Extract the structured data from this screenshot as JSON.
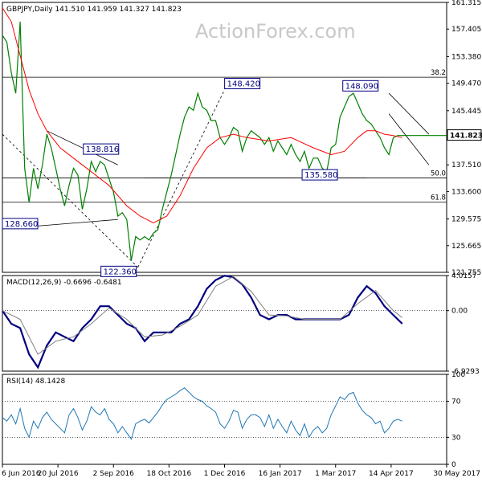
{
  "chart_data": [
    {
      "type": "line",
      "subtype": "candlestick-price",
      "header": "GBPJPY,Daily  141.510 141.959 141.327 141.823",
      "watermark": "ActionForex.com",
      "ylim": [
        121.755,
        161.315
      ],
      "yticks": [
        "161.315",
        "157.405",
        "153.380",
        "149.470",
        "145.445",
        "141.823",
        "137.510",
        "133.600",
        "129.575",
        "125.665",
        "121.755"
      ],
      "last_price": "141.823",
      "fib_levels": [
        {
          "label": "38.2",
          "y": 150.35
        },
        {
          "label": "50.0",
          "y": 135.58
        },
        {
          "label": "61.8",
          "y": 132.03
        }
      ],
      "annotations": [
        {
          "label": "148.420",
          "x": 0.54,
          "y": 148.42
        },
        {
          "label": "148.090",
          "x": 0.806,
          "y": 148.09
        },
        {
          "label": "138.816",
          "x": 0.222,
          "y": 138.816
        },
        {
          "label": "135.580",
          "x": 0.747,
          "y": 135.58
        },
        {
          "label": "128.660",
          "x": 0.062,
          "y": 128.66
        },
        {
          "label": "122.360",
          "x": 0.305,
          "y": 122.36
        }
      ],
      "series": [
        {
          "name": "GBPJPY",
          "color": "#008000",
          "x": [
            0,
            0.01,
            0.02,
            0.03,
            0.04,
            0.05,
            0.06,
            0.07,
            0.08,
            0.09,
            0.1,
            0.11,
            0.12,
            0.13,
            0.14,
            0.15,
            0.16,
            0.17,
            0.18,
            0.19,
            0.2,
            0.21,
            0.22,
            0.23,
            0.24,
            0.25,
            0.26,
            0.27,
            0.28,
            0.29,
            0.3,
            0.31,
            0.32,
            0.33,
            0.34,
            0.35,
            0.36,
            0.37,
            0.38,
            0.39,
            0.4,
            0.41,
            0.42,
            0.43,
            0.44,
            0.45,
            0.46,
            0.47,
            0.48,
            0.49,
            0.5,
            0.51,
            0.52,
            0.53,
            0.54,
            0.55,
            0.56,
            0.57,
            0.58,
            0.59,
            0.6,
            0.61,
            0.62,
            0.63,
            0.64,
            0.65,
            0.66,
            0.67,
            0.68,
            0.69,
            0.7,
            0.71,
            0.72,
            0.73,
            0.74,
            0.75,
            0.76,
            0.77,
            0.78,
            0.79,
            0.8,
            0.81,
            0.82,
            0.83,
            0.84,
            0.85,
            0.86,
            0.87,
            0.88,
            0.89,
            0.9,
            0.91,
            0.92,
            0.93,
            0.94,
            0.95,
            0.96,
            0.97,
            0.98,
            0.99,
            1.0
          ],
          "values": [
            156.5,
            155.5,
            151,
            148,
            158.5,
            137,
            132,
            137,
            134,
            137.5,
            142,
            140,
            137,
            134,
            131.5,
            134.5,
            137,
            136,
            131,
            134,
            138,
            136.5,
            138,
            137.5,
            135.5,
            133.5,
            130,
            130.5,
            129.5,
            123.5,
            127,
            126.5,
            127,
            126.5,
            127.5,
            128,
            131,
            133.5,
            136,
            139,
            142,
            144.5,
            146,
            145.5,
            148,
            146,
            145.5,
            144,
            144,
            141.5,
            140.5,
            141.5,
            143,
            142.5,
            139.5,
            141.5,
            142.5,
            142,
            141.5,
            140.5,
            141.5,
            139.5,
            141,
            140,
            139,
            140.5,
            139,
            138,
            139.5,
            137,
            138.5,
            138.5,
            137,
            136.5,
            140,
            140.5,
            144.5,
            146,
            147.5,
            148,
            146.5,
            145,
            144,
            143.5,
            142.5,
            141.5,
            140,
            139,
            141.5,
            141.8,
            141.8,
            141.8,
            141.8,
            141.8,
            141.8,
            141.8,
            141.8,
            141.8,
            141.8,
            141.8,
            141.8
          ]
        },
        {
          "name": "SMA",
          "color": "#ff0000",
          "x": [
            0,
            0.02,
            0.04,
            0.06,
            0.08,
            0.1,
            0.13,
            0.16,
            0.2,
            0.24,
            0.28,
            0.31,
            0.34,
            0.37,
            0.4,
            0.43,
            0.46,
            0.49,
            0.52,
            0.55,
            0.6,
            0.65,
            0.7,
            0.74,
            0.77,
            0.8,
            0.82,
            0.84,
            0.86,
            0.88,
            0.9
          ],
          "values": [
            160.5,
            158.5,
            153.5,
            148.5,
            145,
            142.5,
            140,
            138.5,
            136.5,
            134.5,
            131.5,
            130,
            129,
            130,
            133,
            137,
            140,
            141.5,
            142,
            141.5,
            141,
            141.5,
            140,
            139,
            139.5,
            141.5,
            142.5,
            142.5,
            142,
            141.8,
            141.5
          ]
        }
      ]
    },
    {
      "type": "line",
      "header": "MACD(12,26,9) -0.6696 -0.6481",
      "ylim": [
        -6.9293,
        4.0157
      ],
      "yticks": [
        "4.0157",
        "0.00",
        "-6.9293"
      ],
      "series": [
        {
          "name": "MACD",
          "color": "#000080",
          "x": [
            0,
            0.02,
            0.04,
            0.06,
            0.08,
            0.1,
            0.12,
            0.14,
            0.16,
            0.18,
            0.2,
            0.22,
            0.24,
            0.26,
            0.28,
            0.3,
            0.32,
            0.34,
            0.36,
            0.38,
            0.4,
            0.42,
            0.44,
            0.46,
            0.48,
            0.5,
            0.52,
            0.54,
            0.56,
            0.58,
            0.6,
            0.62,
            0.64,
            0.66,
            0.68,
            0.7,
            0.72,
            0.74,
            0.76,
            0.78,
            0.8,
            0.82,
            0.84,
            0.86,
            0.88,
            0.9
          ],
          "values": [
            0,
            -1.5,
            -2,
            -5,
            -6.5,
            -4,
            -2.5,
            -3,
            -3.5,
            -2,
            -1,
            0.5,
            0.5,
            -0.5,
            -1.5,
            -2,
            -3.5,
            -2.5,
            -2.5,
            -2.5,
            -1.5,
            -1,
            0.5,
            2.5,
            3.5,
            4,
            3.8,
            3,
            1.5,
            -0.5,
            -1,
            -0.5,
            -0.5,
            -1,
            -1,
            -1,
            -1,
            -1,
            -1,
            -0.5,
            1.5,
            2.8,
            2,
            0.5,
            -0.5,
            -1.5
          ]
        },
        {
          "name": "Signal",
          "color": "#808080",
          "x": [
            0,
            0.04,
            0.08,
            0.12,
            0.16,
            0.2,
            0.24,
            0.28,
            0.32,
            0.36,
            0.4,
            0.44,
            0.48,
            0.52,
            0.56,
            0.6,
            0.64,
            0.68,
            0.72,
            0.76,
            0.8,
            0.84,
            0.88,
            0.9
          ],
          "values": [
            0,
            -1,
            -5,
            -3.5,
            -3,
            -1.5,
            0.3,
            -1,
            -3,
            -2.8,
            -1.8,
            -0.5,
            2.8,
            3.9,
            2.2,
            -0.5,
            -0.6,
            -1,
            -1,
            -1,
            0.8,
            2.3,
            0,
            -0.8
          ]
        }
      ]
    },
    {
      "type": "line",
      "header": "RSI(14) 48.1428",
      "ylim": [
        0,
        100
      ],
      "yticks": [
        "100",
        "70",
        "30",
        "0"
      ],
      "levels": [
        70,
        30
      ],
      "series": [
        {
          "name": "RSI",
          "color": "#1f77b4",
          "x": [
            0,
            0.01,
            0.02,
            0.03,
            0.04,
            0.05,
            0.06,
            0.07,
            0.08,
            0.09,
            0.1,
            0.11,
            0.12,
            0.13,
            0.14,
            0.15,
            0.16,
            0.17,
            0.18,
            0.19,
            0.2,
            0.21,
            0.22,
            0.23,
            0.24,
            0.25,
            0.26,
            0.27,
            0.28,
            0.29,
            0.3,
            0.31,
            0.32,
            0.33,
            0.34,
            0.35,
            0.36,
            0.37,
            0.38,
            0.39,
            0.4,
            0.41,
            0.42,
            0.43,
            0.44,
            0.45,
            0.46,
            0.47,
            0.48,
            0.49,
            0.5,
            0.51,
            0.52,
            0.53,
            0.54,
            0.55,
            0.56,
            0.57,
            0.58,
            0.59,
            0.6,
            0.61,
            0.62,
            0.63,
            0.64,
            0.65,
            0.66,
            0.67,
            0.68,
            0.69,
            0.7,
            0.71,
            0.72,
            0.73,
            0.74,
            0.75,
            0.76,
            0.77,
            0.78,
            0.79,
            0.8,
            0.81,
            0.82,
            0.83,
            0.84,
            0.85,
            0.86,
            0.87,
            0.88,
            0.89,
            0.9
          ],
          "values": [
            52,
            48,
            55,
            45,
            62,
            40,
            30,
            48,
            40,
            52,
            58,
            50,
            45,
            40,
            35,
            55,
            62,
            52,
            38,
            48,
            64,
            58,
            55,
            62,
            50,
            45,
            35,
            42,
            35,
            28,
            45,
            48,
            50,
            46,
            52,
            58,
            66,
            72,
            75,
            78,
            82,
            85,
            80,
            75,
            72,
            70,
            65,
            62,
            58,
            45,
            40,
            48,
            60,
            58,
            40,
            50,
            55,
            55,
            52,
            42,
            55,
            40,
            50,
            42,
            35,
            48,
            38,
            32,
            45,
            30,
            38,
            42,
            35,
            40,
            55,
            65,
            75,
            72,
            78,
            80,
            68,
            60,
            55,
            52,
            45,
            48,
            35,
            40,
            48,
            50,
            48
          ]
        }
      ]
    }
  ],
  "x_axis": {
    "tick_labels": [
      "6 Jun 2016",
      "20 Jul 2016",
      "2 Sep 2016",
      "18 Oct 2016",
      "1 Dec 2016",
      "16 Jan 2017",
      "1 Mar 2017",
      "14 Apr 2017",
      "30 May 2017"
    ]
  }
}
